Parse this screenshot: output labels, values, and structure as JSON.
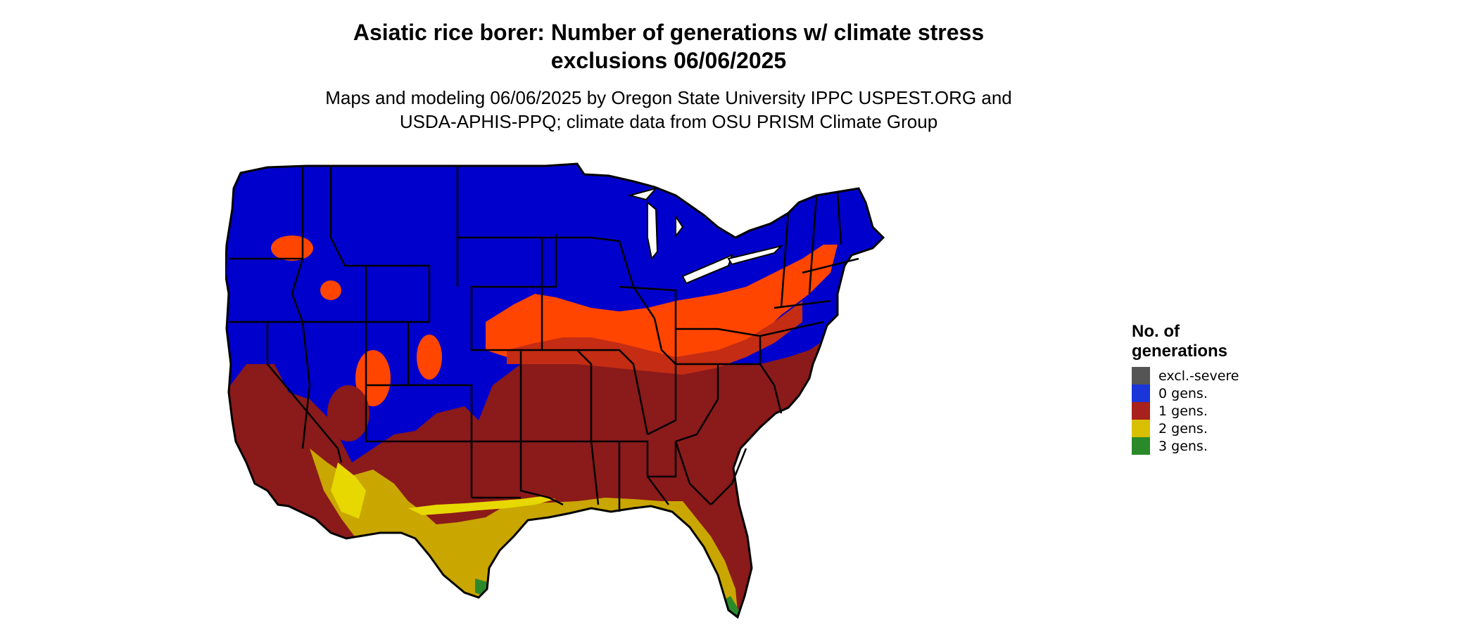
{
  "title": {
    "line1": "Asiatic rice borer: Number of generations w/ climate stress",
    "line2": "exclusions 06/06/2025"
  },
  "subtitle": {
    "line1": "Maps and modeling 06/06/2025 by Oregon State University IPPC USPEST.ORG and",
    "line2": "USDA-APHIS-PPQ; climate data from OSU PRISM Climate Group"
  },
  "legend": {
    "title_line1": "No. of",
    "title_line2": "generations",
    "items": [
      {
        "label": "excl.-severe",
        "color": "#555555"
      },
      {
        "label": "0 gens.",
        "color": "#1a35d8"
      },
      {
        "label": "1 gens.",
        "color": "#a8211c"
      },
      {
        "label": "2 gens.",
        "color": "#d8c000"
      },
      {
        "label": "3 gens.",
        "color": "#2a8a2a"
      }
    ]
  },
  "map_colors": {
    "zero_gens": "#0000cc",
    "one_gens_light": "#ff4500",
    "one_gens_mid": "#d9340f",
    "one_gens": "#8b1a1a",
    "two_gens": "#c9a600",
    "two_gens_light": "#e6d800",
    "three_gens": "#2a8a2a",
    "state_border": "#000000"
  }
}
